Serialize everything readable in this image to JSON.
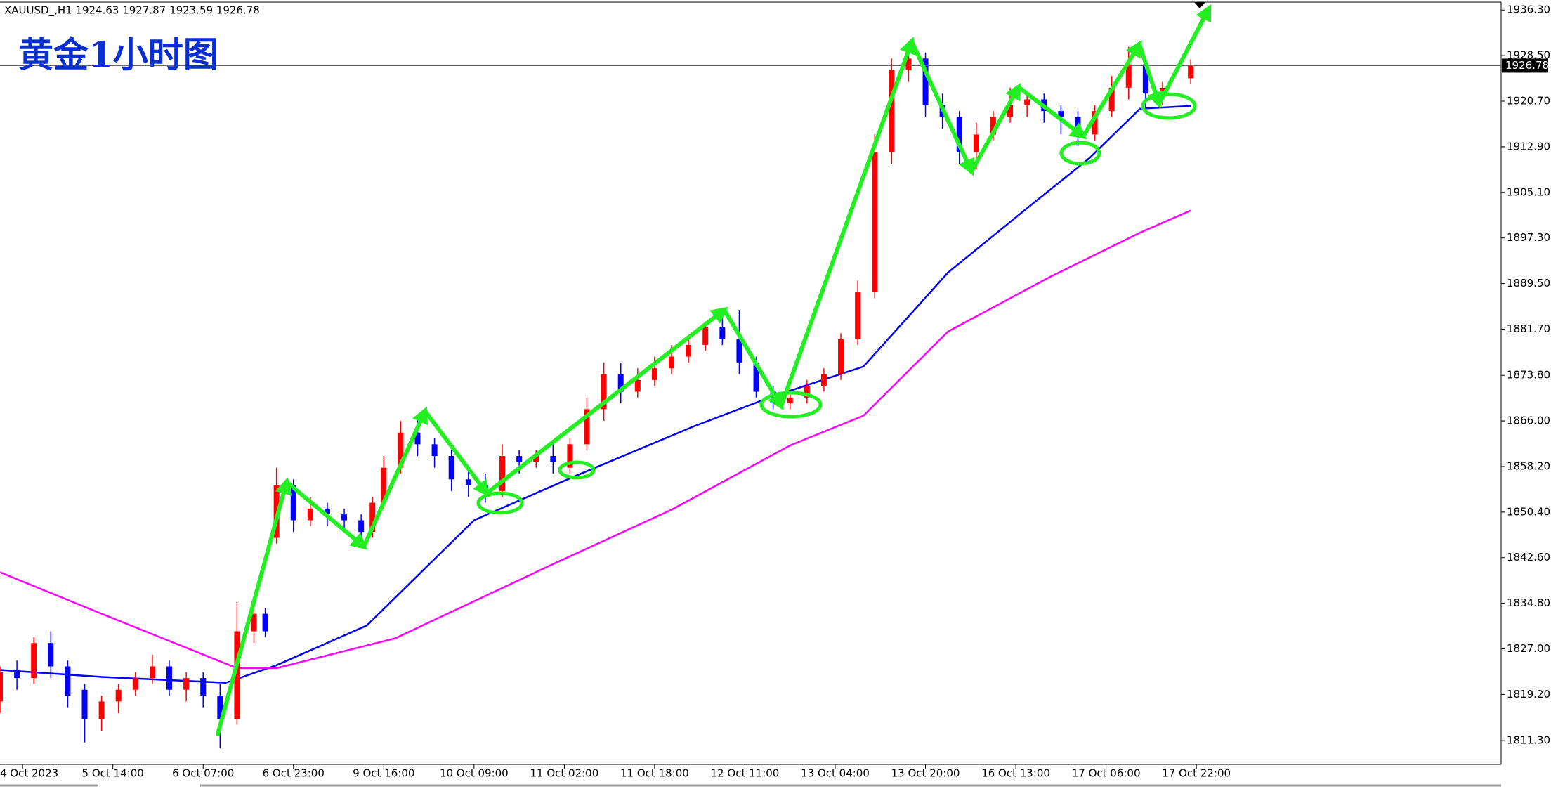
{
  "chart_data": {
    "type": "candlestick",
    "title": "黄金1小时图",
    "header": "XAUUSD_,H1  1924.63 1927.87 1923.59 1926.78",
    "current_price": 1926.78,
    "up_color": "#ff0000",
    "down_color": "#0000ff",
    "xlim": [
      0,
      266
    ],
    "ylim": [
      1807.23,
      1937.65
    ],
    "xticks": [
      {
        "value": 4,
        "label": "4 Oct 2023"
      },
      {
        "value": 20,
        "label": "5 Oct 14:00"
      },
      {
        "value": 36,
        "label": "6 Oct 07:00"
      },
      {
        "value": 52,
        "label": "6 Oct 23:00"
      },
      {
        "value": 68,
        "label": "9 Oct 16:00"
      },
      {
        "value": 84,
        "label": "10 Oct 09:00"
      },
      {
        "value": 100,
        "label": "11 Oct 02:00"
      },
      {
        "value": 116,
        "label": "11 Oct 18:00"
      },
      {
        "value": 132,
        "label": "12 Oct 11:00"
      },
      {
        "value": 148,
        "label": "13 Oct 04:00"
      },
      {
        "value": 164,
        "label": "13 Oct 20:00"
      },
      {
        "value": 180,
        "label": "16 Oct 13:00"
      },
      {
        "value": 196,
        "label": "17 Oct 06:00"
      },
      {
        "value": 212,
        "label": "17 Oct 22:00"
      }
    ],
    "yticks": [
      {
        "value": 1936.3,
        "label": "1936.30"
      },
      {
        "value": 1928.5,
        "label": "1928.50"
      },
      {
        "value": 1920.7,
        "label": "1920.70"
      },
      {
        "value": 1912.9,
        "label": "1912.90"
      },
      {
        "value": 1905.1,
        "label": "1905.10"
      },
      {
        "value": 1897.3,
        "label": "1897.30"
      },
      {
        "value": 1889.5,
        "label": "1889.50"
      },
      {
        "value": 1881.7,
        "label": "1881.70"
      },
      {
        "value": 1873.8,
        "label": "1873.80"
      },
      {
        "value": 1866.0,
        "label": "1866.00"
      },
      {
        "value": 1858.2,
        "label": "1858.20"
      },
      {
        "value": 1850.4,
        "label": "1850.40"
      },
      {
        "value": 1842.6,
        "label": "1842.60"
      },
      {
        "value": 1834.8,
        "label": "1834.80"
      },
      {
        "value": 1827.0,
        "label": "1827.00"
      },
      {
        "value": 1819.2,
        "label": "1819.20"
      },
      {
        "value": 1811.3,
        "label": "1811.30"
      }
    ],
    "x": [
      0,
      3,
      6,
      9,
      12,
      15,
      18,
      21,
      24,
      27,
      30,
      33,
      36,
      39,
      42,
      45,
      47,
      49,
      52,
      55,
      58,
      61,
      64,
      66,
      68,
      71,
      74,
      77,
      80,
      83,
      86,
      89,
      92,
      95,
      98,
      101,
      104,
      107,
      110,
      113,
      116,
      119,
      122,
      125,
      128,
      131,
      134,
      137,
      140,
      143,
      146,
      149,
      152,
      155,
      158,
      161,
      164,
      167,
      170,
      173,
      176,
      179,
      182,
      185,
      188,
      191,
      194,
      197,
      200,
      203,
      206,
      211
    ],
    "open": [
      1818,
      1823,
      1822,
      1828,
      1824,
      1820,
      1815,
      1818,
      1820,
      1822,
      1824,
      1820,
      1822,
      1819,
      1815,
      1830,
      1833,
      1846,
      1855,
      1849,
      1851,
      1850,
      1849,
      1847,
      1852,
      1858,
      1864,
      1862,
      1860,
      1856,
      1855,
      1854,
      1860,
      1859,
      1860,
      1858,
      1862,
      1868,
      1874,
      1871,
      1873,
      1875,
      1877,
      1879,
      1882,
      1880,
      1876,
      1871,
      1869,
      1870,
      1872,
      1874,
      1880,
      1888,
      1912,
      1926,
      1928,
      1920,
      1918,
      1912,
      1915,
      1918,
      1920,
      1921,
      1919,
      1918,
      1915,
      1919,
      1923,
      1927,
      1922,
      1924.63
    ],
    "high": [
      1824,
      1825,
      1829,
      1830,
      1825,
      1821,
      1819,
      1821,
      1823,
      1826,
      1825,
      1823,
      1823,
      1821,
      1835,
      1836,
      1834,
      1858,
      1856,
      1853,
      1852,
      1851,
      1850,
      1853,
      1860,
      1866,
      1867,
      1863,
      1861,
      1858,
      1857,
      1862,
      1861,
      1861,
      1862,
      1863,
      1870,
      1876,
      1876,
      1875,
      1877,
      1879,
      1880,
      1883,
      1884,
      1885,
      1877,
      1872,
      1871,
      1873,
      1875,
      1881,
      1890,
      1915,
      1928,
      1930,
      1929,
      1922,
      1919,
      1917,
      1919,
      1923,
      1922,
      1922,
      1920,
      1919,
      1920,
      1925,
      1930,
      1928,
      1924,
      1927.87
    ],
    "low": [
      1816,
      1820,
      1821,
      1822,
      1817,
      1811,
      1813,
      1816,
      1819,
      1821,
      1819,
      1818,
      1817,
      1810,
      1814,
      1828,
      1829,
      1845,
      1847,
      1848,
      1848,
      1847,
      1845,
      1846,
      1851,
      1857,
      1860,
      1858,
      1854,
      1853,
      1852,
      1853,
      1857,
      1858,
      1857,
      1857,
      1861,
      1866,
      1869,
      1870,
      1872,
      1874,
      1876,
      1878,
      1879,
      1874,
      1870,
      1868,
      1868,
      1869,
      1871,
      1873,
      1879,
      1887,
      1910,
      1924,
      1918,
      1916,
      1910,
      1909,
      1914,
      1917,
      1918,
      1917,
      1915,
      1913,
      1914,
      1918,
      1921,
      1919,
      1920,
      1923.59
    ],
    "close": [
      1823,
      1822,
      1828,
      1824,
      1819,
      1815,
      1818,
      1820,
      1822,
      1824,
      1820,
      1822,
      1819,
      1815,
      1830,
      1833,
      1830,
      1855,
      1849,
      1851,
      1850,
      1849,
      1847,
      1852,
      1858,
      1864,
      1862,
      1860,
      1856,
      1855,
      1854,
      1860,
      1859,
      1860,
      1859,
      1862,
      1868,
      1874,
      1871,
      1873,
      1875,
      1877,
      1879,
      1882,
      1880,
      1876,
      1871,
      1869,
      1870,
      1872,
      1874,
      1880,
      1888,
      1912,
      1926,
      1928,
      1920,
      1918,
      1912,
      1915,
      1918,
      1920,
      1921,
      1919,
      1918,
      1915,
      1919,
      1923,
      1927,
      1922,
      1923,
      1926.78
    ],
    "overlays": [
      {
        "color": "#0000ff",
        "x": [
          0,
          18,
          40,
          49,
          65,
          84,
          102,
          123,
          137,
          153,
          168,
          182,
          193,
          202,
          211
        ],
        "values": [
          1823.4,
          1822.2,
          1821.2,
          1824.2,
          1831,
          1849,
          1856.6,
          1865.1,
          1870.2,
          1875.3,
          1891.4,
          1902.4,
          1910.9,
          1919.4,
          1919.9
        ]
      },
      {
        "color": "#ff00ff",
        "x": [
          0,
          18,
          42,
          49,
          70,
          98,
          119,
          140,
          153,
          168,
          186,
          202,
          211
        ],
        "values": [
          1840.1,
          1833,
          1823.7,
          1823.7,
          1828.8,
          1841.5,
          1850.8,
          1861.8,
          1866.9,
          1881.3,
          1890.6,
          1898.2,
          1902
        ]
      }
    ]
  }
}
